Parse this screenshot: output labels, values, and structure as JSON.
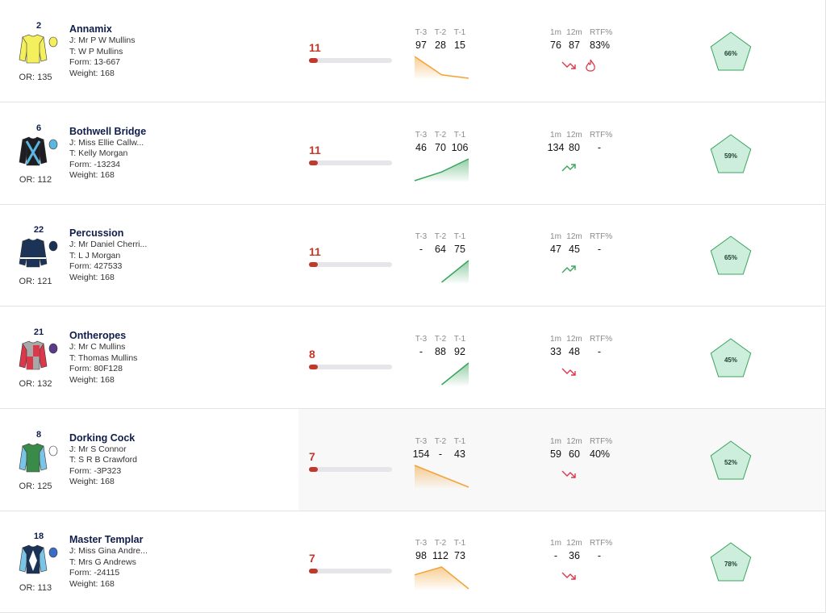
{
  "runners": [
    {
      "number": 2,
      "name": "Annamix",
      "jockey": "J: Mr P W Mullins",
      "trainer": "T: W P Mullins",
      "form": "Form: 13-667",
      "weight": "Weight: 168",
      "or": "OR: 135",
      "rating": 11,
      "speed_labels": [
        "T-3",
        "T-2",
        "T-1"
      ],
      "speed": [
        97,
        28,
        15
      ],
      "stat_labels": [
        "1m",
        "12m",
        "RTF%"
      ],
      "stats": [
        76,
        87,
        "83%"
      ],
      "score": "66%"
    },
    {
      "number": 6,
      "name": "Bothwell Bridge",
      "jockey": "J: Miss Ellie Callw...",
      "trainer": "T: Kelly Morgan",
      "form": "Form: -13234",
      "weight": "Weight: 168",
      "or": "OR: 112",
      "rating": 11,
      "speed_labels": [
        "T-3",
        "T-2",
        "T-1"
      ],
      "speed": [
        46,
        70,
        106
      ],
      "stat_labels": [
        "1m",
        "12m",
        "RTF%"
      ],
      "stats": [
        134,
        80,
        "-"
      ],
      "score": "59%"
    },
    {
      "number": 22,
      "name": "Percussion",
      "jockey": "J: Mr Daniel Cherri...",
      "trainer": "T: L J Morgan",
      "form": "Form: 427533",
      "weight": "Weight: 168",
      "or": "OR: 121",
      "rating": 11,
      "speed_labels": [
        "T-3",
        "T-2",
        "T-1"
      ],
      "speed": [
        "-",
        64,
        75
      ],
      "stat_labels": [
        "1m",
        "12m",
        "RTF%"
      ],
      "stats": [
        47,
        45,
        "-"
      ],
      "score": "65%"
    },
    {
      "number": 21,
      "name": "Ontheropes",
      "jockey": "J: Mr C Mullins",
      "trainer": "T: Thomas Mullins",
      "form": "Form: 80F128",
      "weight": "Weight: 168",
      "or": "OR: 132",
      "rating": 8,
      "speed_labels": [
        "T-3",
        "T-2",
        "T-1"
      ],
      "speed": [
        "-",
        88,
        92
      ],
      "stat_labels": [
        "1m",
        "12m",
        "RTF%"
      ],
      "stats": [
        33,
        48,
        "-"
      ],
      "score": "45%"
    },
    {
      "number": 8,
      "name": "Dorking Cock",
      "jockey": "J: Mr S Connor",
      "trainer": "T: S R B Crawford",
      "form": "Form: -3P323",
      "weight": "Weight: 168",
      "or": "OR: 125",
      "rating": 7,
      "speed_labels": [
        "T-3",
        "T-2",
        "T-1"
      ],
      "speed": [
        154,
        "-",
        43
      ],
      "stat_labels": [
        "1m",
        "12m",
        "RTF%"
      ],
      "stats": [
        59,
        60,
        "40%"
      ],
      "score": "52%"
    },
    {
      "number": 18,
      "name": "Master Templar",
      "jockey": "J: Miss Gina Andre...",
      "trainer": "T: Mrs G Andrews",
      "form": "Form: -24115",
      "weight": "Weight: 168",
      "or": "OR: 113",
      "rating": 7,
      "speed_labels": [
        "T-3",
        "T-2",
        "T-1"
      ],
      "speed": [
        98,
        112,
        73
      ],
      "stat_labels": [
        "1m",
        "12m",
        "RTF%"
      ],
      "stats": [
        "-",
        36,
        "-"
      ],
      "score": "78%"
    }
  ]
}
